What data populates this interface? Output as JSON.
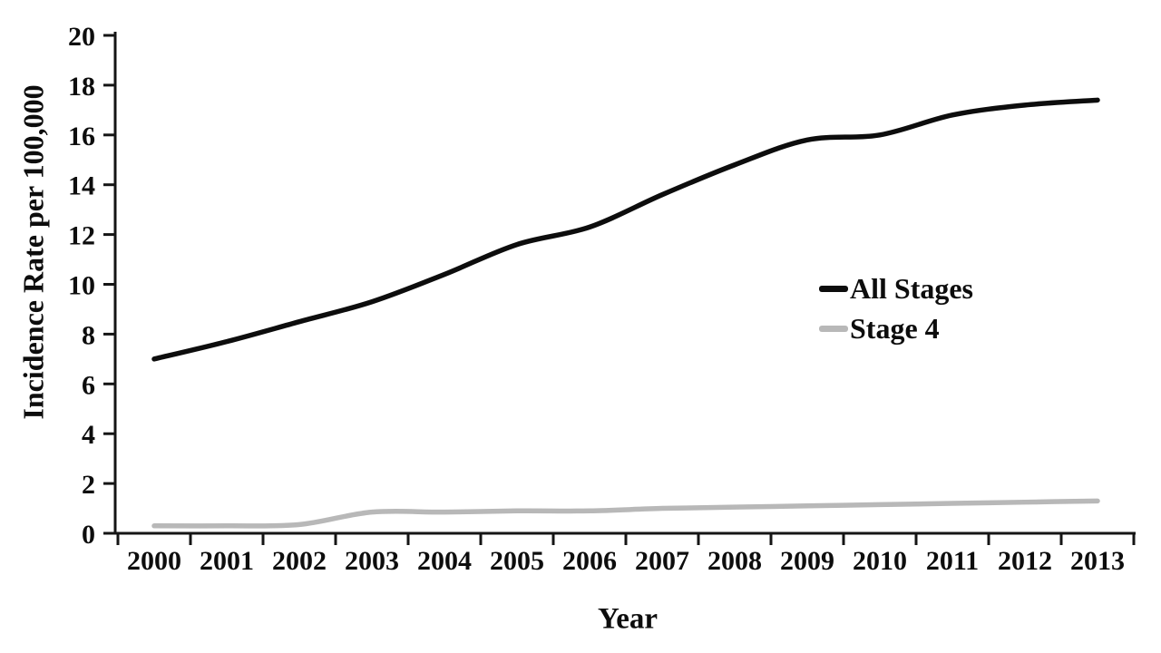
{
  "chart_data": {
    "type": "line",
    "title": "",
    "xlabel": "Year",
    "ylabel": "Incidence Rate per 100,000",
    "x": [
      2000,
      2001,
      2002,
      2003,
      2004,
      2005,
      2006,
      2007,
      2008,
      2009,
      2010,
      2011,
      2012,
      2013
    ],
    "series": [
      {
        "name": "All Stages",
        "color": "#0d0d0d",
        "values": [
          7.0,
          7.7,
          8.5,
          9.3,
          10.4,
          11.6,
          12.3,
          13.6,
          14.8,
          15.8,
          16.0,
          16.8,
          17.2,
          17.4
        ]
      },
      {
        "name": "Stage 4",
        "color": "#b8b8b8",
        "values": [
          0.3,
          0.3,
          0.35,
          0.85,
          0.85,
          0.9,
          0.9,
          1.0,
          1.05,
          1.1,
          1.15,
          1.2,
          1.25,
          1.3
        ]
      }
    ],
    "ylim": [
      0,
      20
    ],
    "ytick_step": 2,
    "axis_color": "#151515",
    "grid": false,
    "legend_position": "right-middle",
    "smooth_lines": true
  }
}
